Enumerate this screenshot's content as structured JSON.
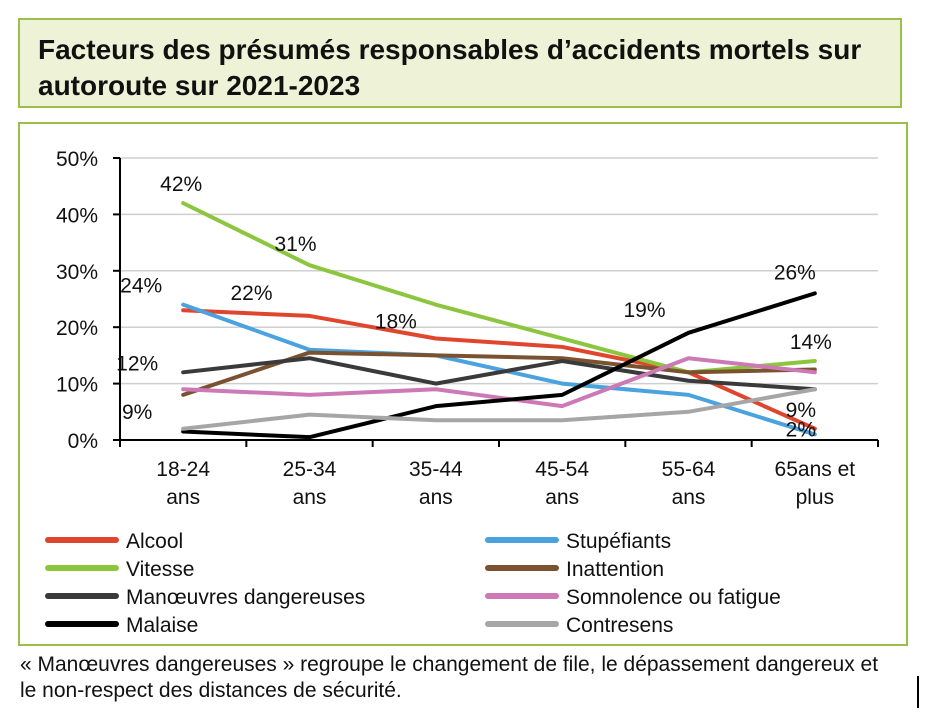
{
  "title": "Facteurs des présumés responsables d’accidents mortels sur autoroute sur 2021-2023",
  "footnote": "« Manœuvres dangereuses » regroupe le changement de file, le dépassement dangereux et le non-respect des distances de sécurité.",
  "chart_data": {
    "type": "line",
    "title": "",
    "xlabel": "",
    "ylabel": "",
    "ylim": [
      0,
      50
    ],
    "yticks": [
      "0%",
      "10%",
      "20%",
      "30%",
      "40%",
      "50%"
    ],
    "categories": [
      [
        "18-24",
        "ans"
      ],
      [
        "25-34",
        "ans"
      ],
      [
        "35-44",
        "ans"
      ],
      [
        "45-54",
        "ans"
      ],
      [
        "55-64",
        "ans"
      ],
      [
        "65ans et",
        "plus"
      ]
    ],
    "grid": true,
    "legend_position": "bottom",
    "series": [
      {
        "name": "Alcool",
        "color": "#e0452e",
        "values": [
          23,
          22,
          18,
          16.5,
          12,
          2
        ]
      },
      {
        "name": "Stupéfiants",
        "color": "#4aa3df",
        "values": [
          24,
          16,
          15,
          10,
          8,
          1
        ]
      },
      {
        "name": "Vitesse",
        "color": "#8cc63f",
        "values": [
          42,
          31,
          24,
          18,
          12,
          14
        ]
      },
      {
        "name": "Inattention",
        "color": "#7a5230",
        "values": [
          8,
          15.5,
          15,
          14.5,
          12,
          12.5
        ]
      },
      {
        "name": "Manœuvres dangereuses",
        "color": "#3a3a3a",
        "values": [
          12,
          14.5,
          10,
          14,
          10.5,
          9
        ]
      },
      {
        "name": "Somnolence ou fatigue",
        "color": "#cc79b6",
        "values": [
          9,
          8,
          9,
          6,
          14.5,
          12
        ]
      },
      {
        "name": "Malaise",
        "color": "#000000",
        "values": [
          1.5,
          0.5,
          6,
          8,
          19,
          26
        ]
      },
      {
        "name": "Contresens",
        "color": "#a6a6a6",
        "values": [
          2,
          4.5,
          3.5,
          3.5,
          5,
          9
        ]
      }
    ],
    "annotations": [
      {
        "text": "42%",
        "series": 2,
        "index": 0
      },
      {
        "text": "31%",
        "series": 2,
        "index": 1
      },
      {
        "text": "24%",
        "series": 1,
        "index": 0
      },
      {
        "text": "22%",
        "series": 0,
        "index": 1
      },
      {
        "text": "18%",
        "series": 0,
        "index": 2
      },
      {
        "text": "12%",
        "series": 4,
        "index": 0
      },
      {
        "text": "9%",
        "series": 5,
        "index": 0
      },
      {
        "text": "19%",
        "series": 6,
        "index": 4
      },
      {
        "text": "26%",
        "series": 6,
        "index": 5
      },
      {
        "text": "14%",
        "series": 2,
        "index": 5
      },
      {
        "text": "9%",
        "series": 4,
        "index": 5
      },
      {
        "text": "2%",
        "series": 0,
        "index": 5
      }
    ]
  }
}
